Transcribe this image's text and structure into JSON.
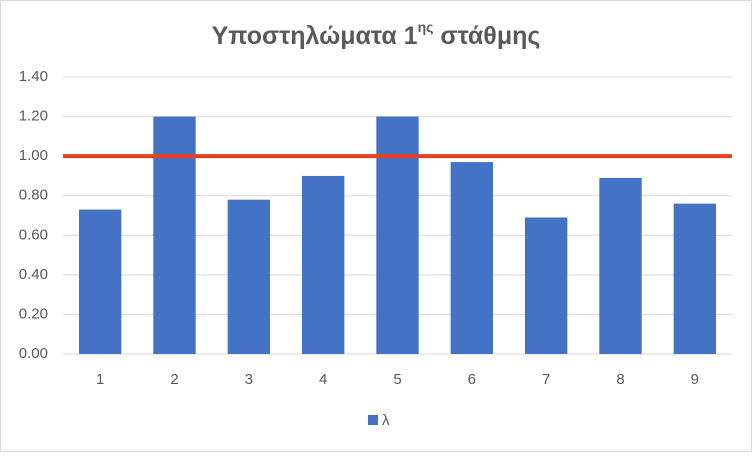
{
  "chart_data": {
    "type": "bar",
    "title_parts": [
      "Υποστηλώματα 1",
      "ης",
      " στάθμης"
    ],
    "categories": [
      "1",
      "2",
      "3",
      "4",
      "5",
      "6",
      "7",
      "8",
      "9"
    ],
    "series": [
      {
        "name": "λ",
        "color": "#4472c4",
        "values": [
          0.73,
          1.2,
          0.78,
          0.9,
          1.2,
          0.97,
          0.69,
          0.89,
          0.76
        ]
      }
    ],
    "reference_lines": [
      {
        "value": 1.0,
        "color": "#e8401c"
      }
    ],
    "ylim": [
      0,
      1.4
    ],
    "yticks": [
      {
        "value": 0,
        "label": "0.00"
      },
      {
        "value": 0.2,
        "label": "0.20"
      },
      {
        "value": 0.4,
        "label": "0.40"
      },
      {
        "value": 0.6,
        "label": "0.60"
      },
      {
        "value": 0.8,
        "label": "0.80"
      },
      {
        "value": 1.0,
        "label": "1.00"
      },
      {
        "value": 1.2,
        "label": "1.20"
      },
      {
        "value": 1.4,
        "label": "1.40"
      }
    ],
    "grid": true,
    "legend": "bottom"
  }
}
